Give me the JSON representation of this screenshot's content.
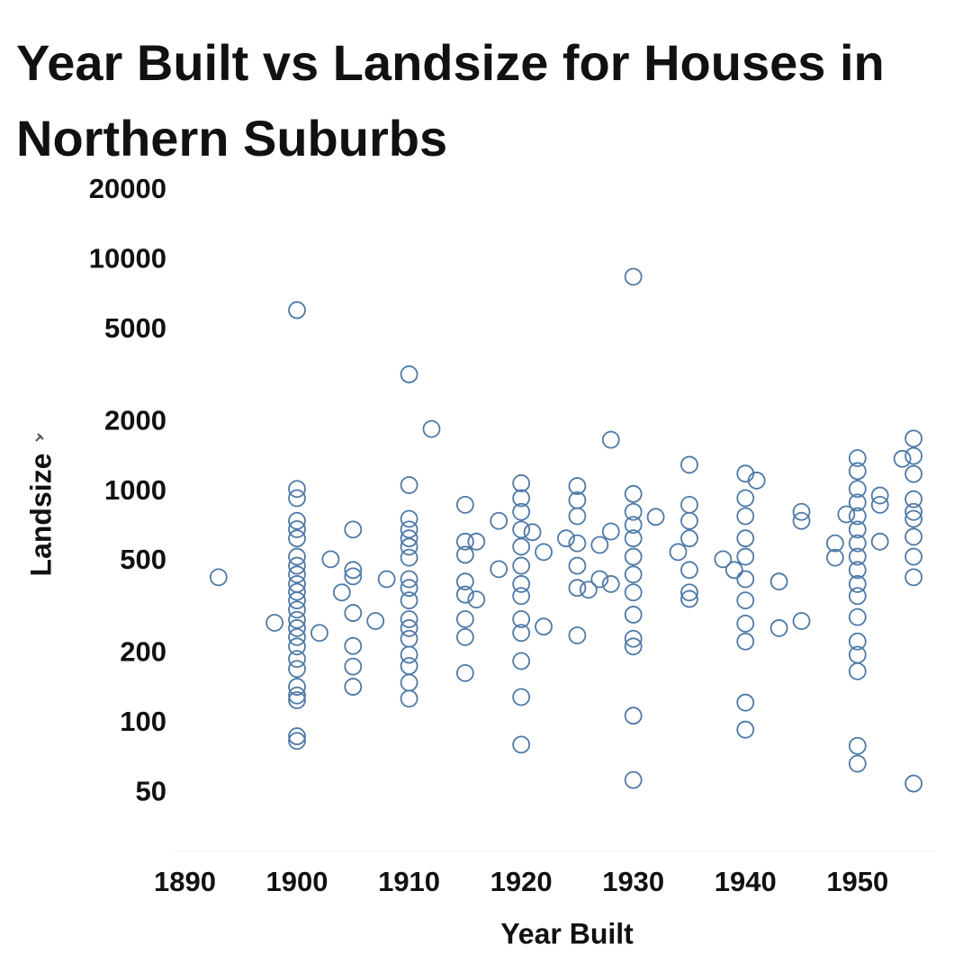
{
  "chart_data": {
    "type": "scatter",
    "title": "Year Built vs Landsize for Houses in Northern Suburbs",
    "x_label": "Year Built",
    "y_label": "Landsize",
    "color": "#4e79a7",
    "y_scale": "log",
    "xlim": [
      1889,
      1957
    ],
    "ylim": [
      28,
      25000
    ],
    "xticks": [
      1890,
      1900,
      1910,
      1920,
      1930,
      1940,
      1950
    ],
    "yticks": [
      50,
      100,
      200,
      500,
      1000,
      2000,
      5000,
      10000,
      20000
    ],
    "x": [
      1893,
      1898,
      1900,
      1900,
      1900,
      1900,
      1900,
      1900,
      1900,
      1900,
      1900,
      1900,
      1900,
      1900,
      1900,
      1900,
      1900,
      1900,
      1900,
      1900,
      1900,
      1900,
      1900,
      1900,
      1900,
      1900,
      1902,
      1903,
      1904,
      1905,
      1905,
      1905,
      1905,
      1905,
      1905,
      1905,
      1907,
      1908,
      1910,
      1910,
      1910,
      1910,
      1910,
      1910,
      1910,
      1910,
      1910,
      1910,
      1910,
      1910,
      1910,
      1910,
      1910,
      1910,
      1910,
      1912,
      1915,
      1915,
      1915,
      1915,
      1915,
      1915,
      1915,
      1915,
      1916,
      1916,
      1918,
      1918,
      1920,
      1920,
      1920,
      1920,
      1920,
      1920,
      1920,
      1920,
      1920,
      1920,
      1920,
      1920,
      1920,
      1921,
      1922,
      1922,
      1924,
      1925,
      1925,
      1925,
      1925,
      1925,
      1925,
      1925,
      1926,
      1927,
      1927,
      1928,
      1928,
      1928,
      1930,
      1930,
      1930,
      1930,
      1930,
      1930,
      1930,
      1930,
      1930,
      1930,
      1930,
      1930,
      1930,
      1932,
      1934,
      1935,
      1935,
      1935,
      1935,
      1935,
      1935,
      1935,
      1938,
      1939,
      1940,
      1940,
      1940,
      1940,
      1940,
      1940,
      1940,
      1940,
      1940,
      1940,
      1940,
      1941,
      1943,
      1943,
      1945,
      1945,
      1945,
      1948,
      1948,
      1949,
      1950,
      1950,
      1950,
      1950,
      1950,
      1950,
      1950,
      1950,
      1950,
      1950,
      1950,
      1950,
      1950,
      1950,
      1950,
      1950,
      1950,
      1952,
      1952,
      1952,
      1954,
      1955,
      1955,
      1955,
      1955,
      1955,
      1955,
      1955,
      1955,
      1955,
      1955
    ],
    "values": [
      428,
      272,
      6100,
      1030,
      940,
      750,
      690,
      630,
      525,
      480,
      440,
      400,
      370,
      340,
      310,
      280,
      258,
      236,
      215,
      190,
      172,
      144,
      132,
      126,
      88,
      84,
      246,
      512,
      368,
      688,
      460,
      432,
      300,
      216,
      176,
      144,
      277,
      420,
      3220,
      1070,
      765,
      688,
      630,
      580,
      520,
      420,
      385,
      340,
      282,
      258,
      232,
      198,
      177,
      150,
      128,
      1870,
      880,
      610,
      535,
      410,
      360,
      282,
      236,
      165,
      610,
      343,
      750,
      464,
      1090,
      940,
      820,
      688,
      580,
      480,
      400,
      355,
      282,
      246,
      186,
      130,
      81,
      670,
      550,
      262,
      630,
      1060,
      920,
      786,
      600,
      480,
      385,
      240,
      378,
      590,
      420,
      1680,
      675,
      400,
      8500,
      980,
      820,
      720,
      630,
      525,
      440,
      368,
      295,
      232,
      215,
      108,
      57,
      780,
      550,
      1310,
      880,
      750,
      630,
      460,
      368,
      345,
      512,
      460,
      1200,
      940,
      786,
      630,
      525,
      420,
      340,
      270,
      226,
      123,
      94,
      1120,
      410,
      258,
      820,
      750,
      277,
      600,
      520,
      800,
      1400,
      1230,
      1030,
      900,
      786,
      688,
      600,
      525,
      460,
      400,
      355,
      288,
      226,
      198,
      168,
      80,
      67,
      965,
      610,
      880,
      1390,
      1700,
      1430,
      1195,
      930,
      820,
      765,
      640,
      525,
      428,
      55
    ]
  }
}
